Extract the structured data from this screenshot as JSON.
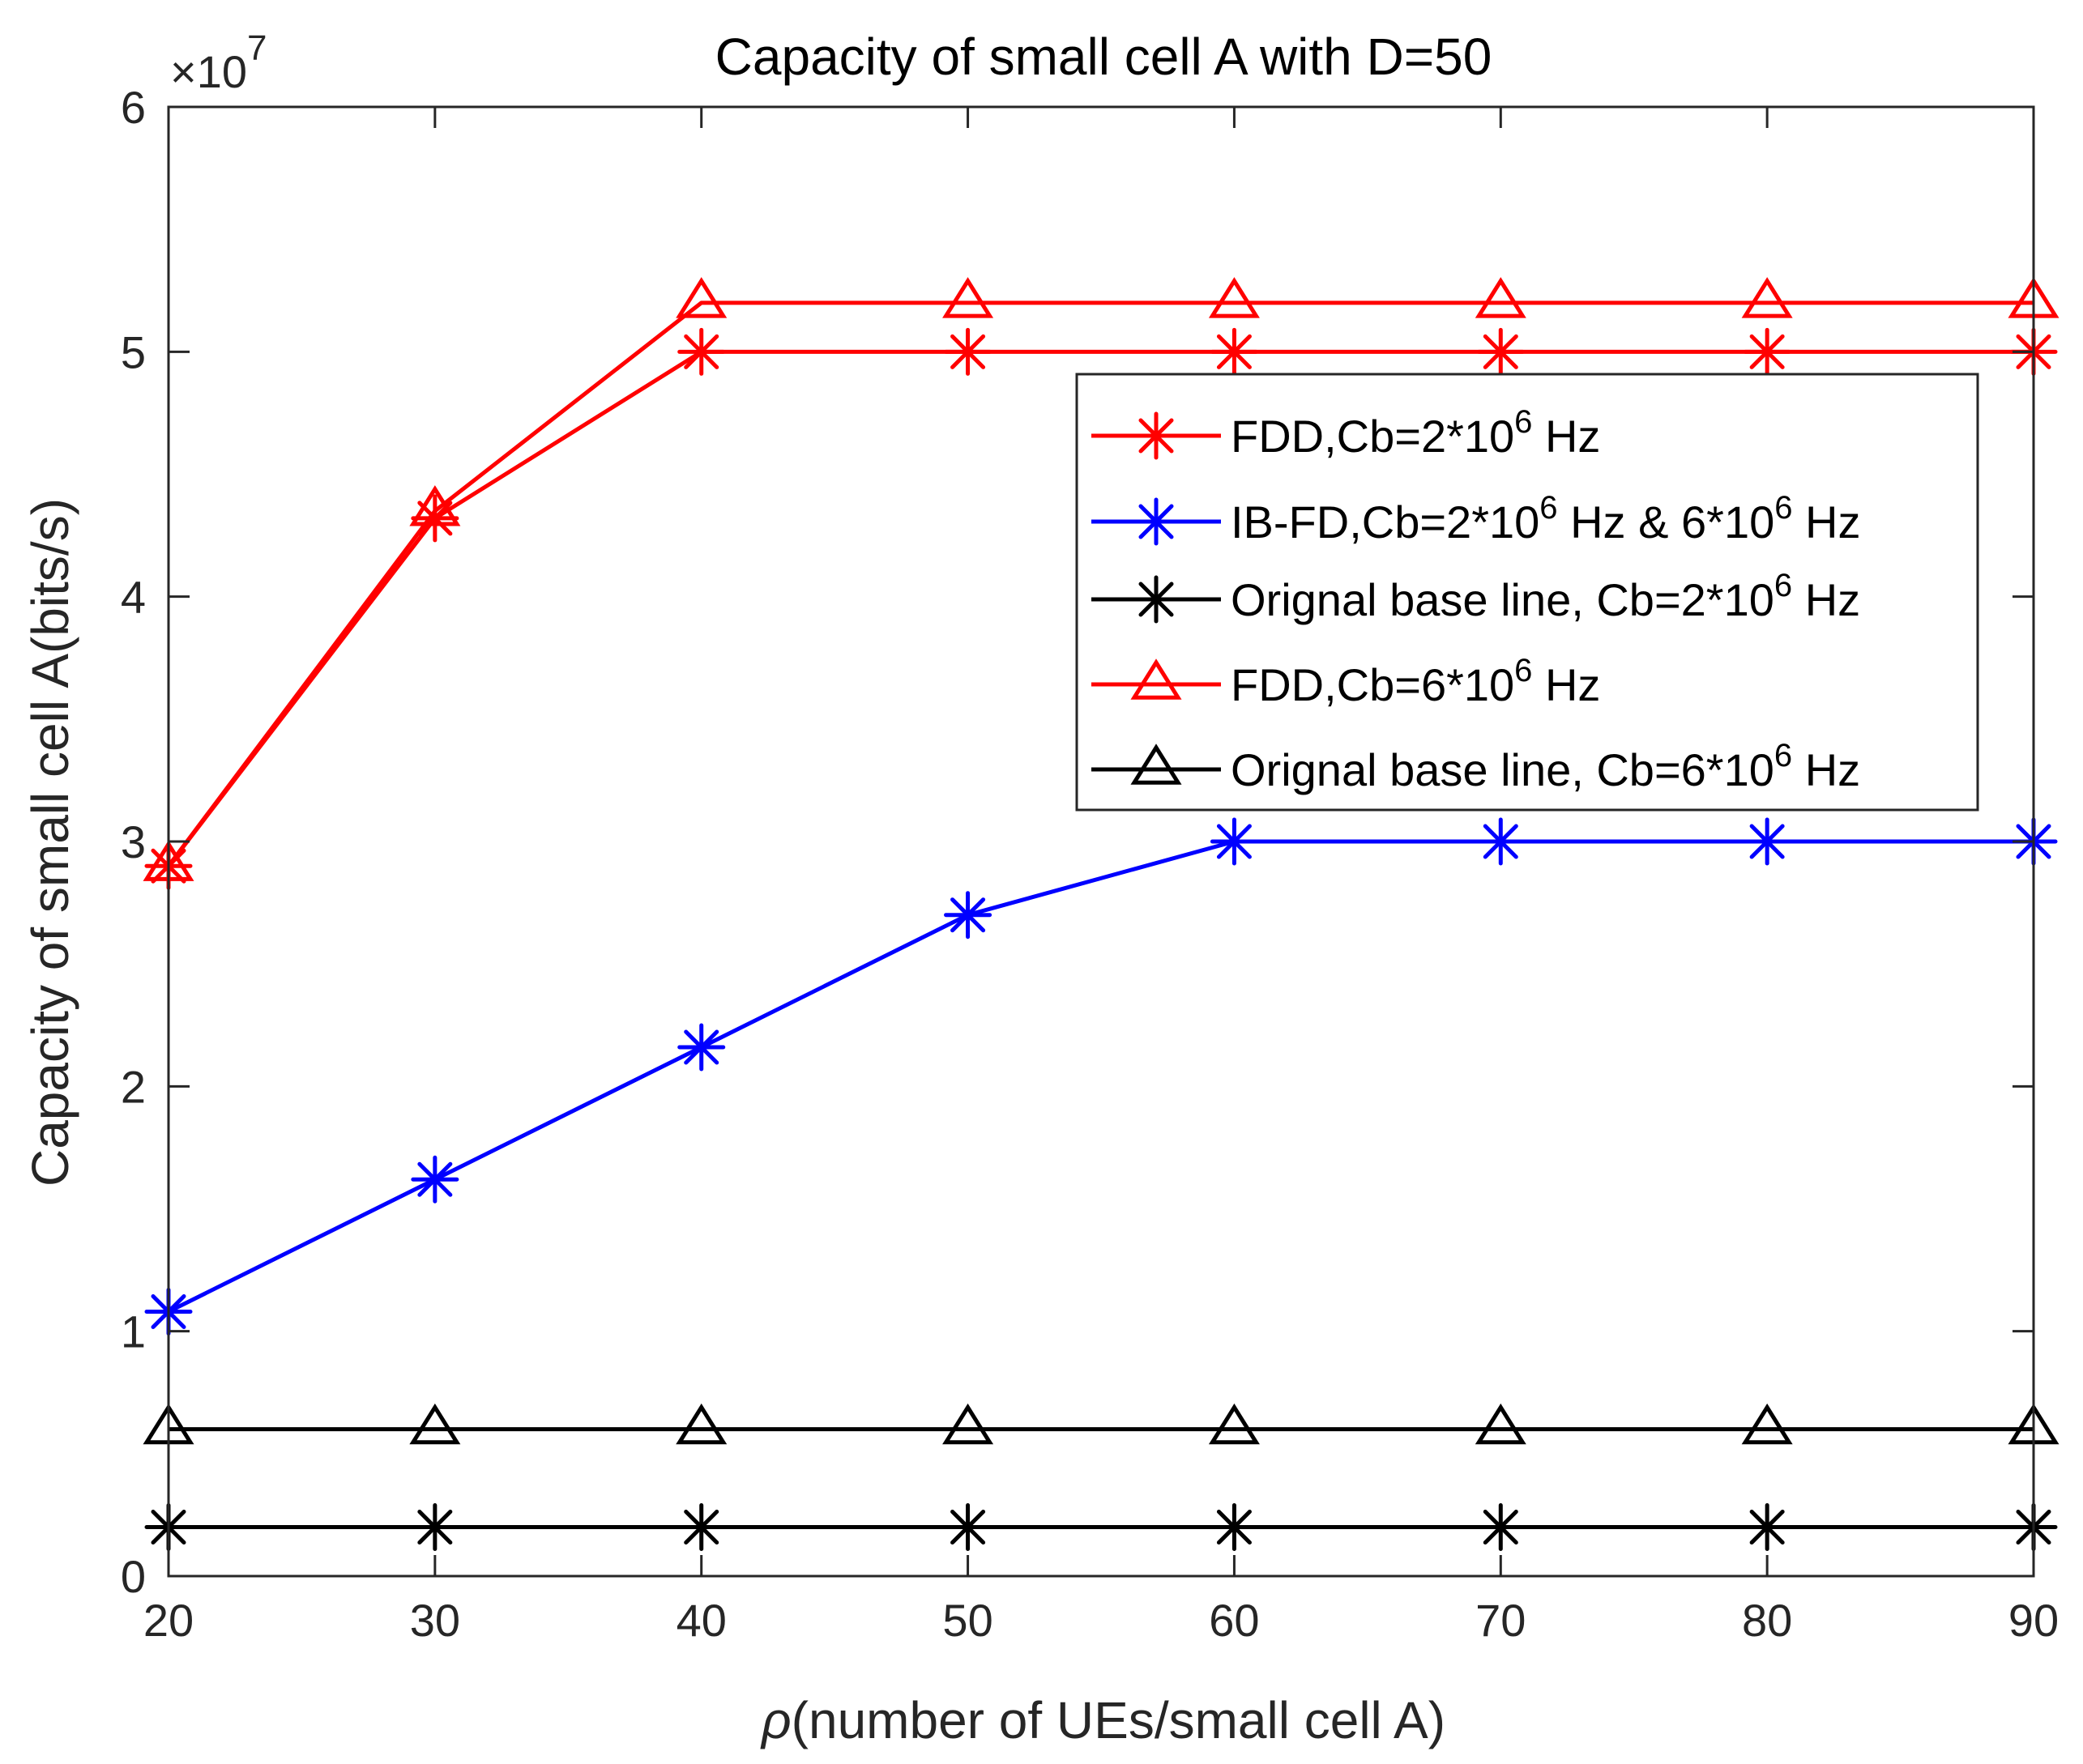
{
  "chart_data": {
    "type": "line",
    "title": "Capacity of small cell A with D=50",
    "xlabel_symbol": "ρ",
    "xlabel_rest": "(number of UEs/small cell A)",
    "ylabel": "Capacity of small cell A(bits/s)",
    "exponent_base": "×10",
    "exponent_power": "7",
    "xlim": [
      20,
      90
    ],
    "ylim": [
      0,
      6
    ],
    "xticks": [
      20,
      30,
      40,
      50,
      60,
      70,
      80,
      90
    ],
    "yticks": [
      0,
      1,
      2,
      3,
      4,
      5,
      6
    ],
    "x": [
      20,
      30,
      40,
      50,
      60,
      70,
      80,
      90
    ],
    "legend_position": "upper-right",
    "grid": false,
    "series": [
      {
        "name": "FDD,Cb=2*10^6 Hz",
        "legend_main": "FDD,Cb=2*10",
        "legend_sup": "6",
        "legend_tail": " Hz",
        "color": "#ff0000",
        "marker": "asterisk",
        "values": [
          2.9,
          4.32,
          5.0,
          5.0,
          5.0,
          5.0,
          5.0,
          5.0
        ]
      },
      {
        "name": "IB-FD,Cb=2*10^6 Hz & 6*10^6 Hz",
        "legend_main": "IB-FD,Cb=2*10",
        "legend_sup": "6",
        "legend_tail": " Hz & 6*10",
        "legend_sup2": "6",
        "legend_tail2": " Hz",
        "color": "#0000ff",
        "marker": "asterisk",
        "values": [
          1.08,
          1.62,
          2.16,
          2.7,
          3.0,
          3.0,
          3.0,
          3.0
        ]
      },
      {
        "name": "Orignal base line, Cb=2*10^6 Hz",
        "legend_main": "Orignal base line, Cb=2*10",
        "legend_sup": "6",
        "legend_tail": " Hz",
        "color": "#000000",
        "marker": "asterisk",
        "values": [
          0.2,
          0.2,
          0.2,
          0.2,
          0.2,
          0.2,
          0.2,
          0.2
        ]
      },
      {
        "name": "FDD,Cb=6*10^6 Hz",
        "legend_main": "FDD,Cb=6*10",
        "legend_sup": "6",
        "legend_tail": " Hz",
        "color": "#ff0000",
        "marker": "triangle",
        "values": [
          2.9,
          4.35,
          5.2,
          5.2,
          5.2,
          5.2,
          5.2,
          5.2
        ]
      },
      {
        "name": "Orignal base line, Cb=6*10^6 Hz",
        "legend_main": "Orignal base line, Cb=6*10",
        "legend_sup": "6",
        "legend_tail": " Hz",
        "color": "#000000",
        "marker": "triangle",
        "values": [
          0.6,
          0.6,
          0.6,
          0.6,
          0.6,
          0.6,
          0.6,
          0.6
        ]
      }
    ]
  }
}
